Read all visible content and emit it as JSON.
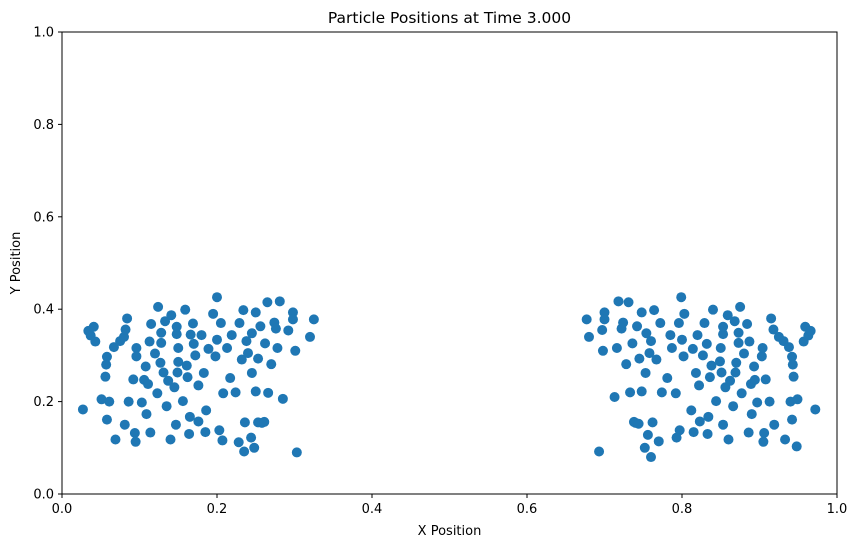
{
  "chart_data": {
    "type": "scatter",
    "title": "Particle Positions at Time 3.000",
    "xlabel": "X Position",
    "ylabel": "Y Position",
    "xlim": [
      0,
      1
    ],
    "ylim": [
      0,
      1
    ],
    "xticks": [
      "0.0",
      "0.2",
      "0.4",
      "0.6",
      "0.8",
      "1.0"
    ],
    "yticks": [
      "0.0",
      "0.2",
      "0.4",
      "0.6",
      "0.8",
      "1.0"
    ],
    "grid": false,
    "marker_color": "#1f77b4",
    "series": [
      {
        "points": [
          [
            0.027,
            0.183
          ],
          [
            0.034,
            0.353
          ],
          [
            0.037,
            0.343
          ],
          [
            0.041,
            0.362
          ],
          [
            0.043,
            0.33
          ],
          [
            0.051,
            0.205
          ],
          [
            0.056,
            0.254
          ],
          [
            0.057,
            0.28
          ],
          [
            0.058,
            0.297
          ],
          [
            0.058,
            0.161
          ],
          [
            0.061,
            0.2
          ],
          [
            0.067,
            0.318
          ],
          [
            0.069,
            0.118
          ],
          [
            0.075,
            0.331
          ],
          [
            0.08,
            0.34
          ],
          [
            0.081,
            0.15
          ],
          [
            0.082,
            0.356
          ],
          [
            0.084,
            0.38
          ],
          [
            0.086,
            0.2
          ],
          [
            0.092,
            0.248
          ],
          [
            0.094,
            0.132
          ],
          [
            0.095,
            0.113
          ],
          [
            0.096,
            0.316
          ],
          [
            0.096,
            0.298
          ],
          [
            0.103,
            0.198
          ],
          [
            0.106,
            0.247
          ],
          [
            0.108,
            0.276
          ],
          [
            0.109,
            0.173
          ],
          [
            0.111,
            0.238
          ],
          [
            0.113,
            0.33
          ],
          [
            0.114,
            0.133
          ],
          [
            0.115,
            0.368
          ],
          [
            0.12,
            0.304
          ],
          [
            0.123,
            0.218
          ],
          [
            0.124,
            0.405
          ],
          [
            0.127,
            0.284
          ],
          [
            0.128,
            0.327
          ],
          [
            0.128,
            0.349
          ],
          [
            0.131,
            0.263
          ],
          [
            0.133,
            0.374
          ],
          [
            0.135,
            0.19
          ],
          [
            0.137,
            0.245
          ],
          [
            0.14,
            0.118
          ],
          [
            0.141,
            0.387
          ],
          [
            0.145,
            0.231
          ],
          [
            0.147,
            0.15
          ],
          [
            0.148,
            0.346
          ],
          [
            0.148,
            0.362
          ],
          [
            0.149,
            0.263
          ],
          [
            0.15,
            0.286
          ],
          [
            0.15,
            0.316
          ],
          [
            0.156,
            0.201
          ],
          [
            0.159,
            0.399
          ],
          [
            0.161,
            0.278
          ],
          [
            0.162,
            0.253
          ],
          [
            0.164,
            0.13
          ],
          [
            0.165,
            0.167
          ],
          [
            0.166,
            0.345
          ],
          [
            0.169,
            0.369
          ],
          [
            0.17,
            0.325
          ],
          [
            0.172,
            0.3
          ],
          [
            0.176,
            0.235
          ],
          [
            0.176,
            0.157
          ],
          [
            0.18,
            0.344
          ],
          [
            0.183,
            0.262
          ],
          [
            0.185,
            0.134
          ],
          [
            0.186,
            0.181
          ],
          [
            0.189,
            0.314
          ],
          [
            0.195,
            0.39
          ],
          [
            0.198,
            0.298
          ],
          [
            0.2,
            0.426
          ],
          [
            0.2,
            0.334
          ],
          [
            0.203,
            0.138
          ],
          [
            0.205,
            0.37
          ],
          [
            0.207,
            0.116
          ],
          [
            0.208,
            0.218
          ],
          [
            0.213,
            0.316
          ],
          [
            0.217,
            0.251
          ],
          [
            0.219,
            0.344
          ],
          [
            0.224,
            0.22
          ],
          [
            0.228,
            0.112
          ],
          [
            0.229,
            0.37
          ],
          [
            0.232,
            0.291
          ],
          [
            0.234,
            0.398
          ],
          [
            0.235,
            0.092
          ],
          [
            0.236,
            0.155
          ],
          [
            0.238,
            0.331
          ],
          [
            0.24,
            0.305
          ],
          [
            0.244,
            0.122
          ],
          [
            0.245,
            0.348
          ],
          [
            0.245,
            0.262
          ],
          [
            0.248,
            0.1
          ],
          [
            0.25,
            0.393
          ],
          [
            0.25,
            0.222
          ],
          [
            0.253,
            0.293
          ],
          [
            0.253,
            0.155
          ],
          [
            0.256,
            0.363
          ],
          [
            0.258,
            0.154
          ],
          [
            0.261,
            0.156
          ],
          [
            0.262,
            0.326
          ],
          [
            0.265,
            0.415
          ],
          [
            0.266,
            0.219
          ],
          [
            0.27,
            0.281
          ],
          [
            0.274,
            0.371
          ],
          [
            0.276,
            0.358
          ],
          [
            0.278,
            0.316
          ],
          [
            0.281,
            0.417
          ],
          [
            0.285,
            0.206
          ],
          [
            0.292,
            0.354
          ],
          [
            0.298,
            0.393
          ],
          [
            0.298,
            0.378
          ],
          [
            0.301,
            0.31
          ],
          [
            0.303,
            0.09
          ],
          [
            0.32,
            0.34
          ],
          [
            0.325,
            0.378
          ]
        ]
      },
      {
        "points": [
          [
            0.677,
            0.378
          ],
          [
            0.68,
            0.34
          ],
          [
            0.693,
            0.092
          ],
          [
            0.697,
            0.355
          ],
          [
            0.698,
            0.31
          ],
          [
            0.7,
            0.393
          ],
          [
            0.7,
            0.378
          ],
          [
            0.713,
            0.21
          ],
          [
            0.716,
            0.316
          ],
          [
            0.718,
            0.417
          ],
          [
            0.722,
            0.358
          ],
          [
            0.724,
            0.371
          ],
          [
            0.728,
            0.281
          ],
          [
            0.731,
            0.415
          ],
          [
            0.733,
            0.22
          ],
          [
            0.736,
            0.326
          ],
          [
            0.738,
            0.156
          ],
          [
            0.74,
            0.154
          ],
          [
            0.742,
            0.363
          ],
          [
            0.744,
            0.152
          ],
          [
            0.745,
            0.293
          ],
          [
            0.748,
            0.222
          ],
          [
            0.748,
            0.393
          ],
          [
            0.752,
            0.1
          ],
          [
            0.753,
            0.262
          ],
          [
            0.754,
            0.348
          ],
          [
            0.756,
            0.128
          ],
          [
            0.758,
            0.305
          ],
          [
            0.76,
            0.331
          ],
          [
            0.76,
            0.08
          ],
          [
            0.762,
            0.155
          ],
          [
            0.764,
            0.398
          ],
          [
            0.767,
            0.291
          ],
          [
            0.77,
            0.114
          ],
          [
            0.772,
            0.37
          ],
          [
            0.774,
            0.22
          ],
          [
            0.781,
            0.251
          ],
          [
            0.785,
            0.344
          ],
          [
            0.787,
            0.316
          ],
          [
            0.792,
            0.218
          ],
          [
            0.793,
            0.122
          ],
          [
            0.796,
            0.37
          ],
          [
            0.797,
            0.138
          ],
          [
            0.799,
            0.426
          ],
          [
            0.8,
            0.334
          ],
          [
            0.802,
            0.298
          ],
          [
            0.803,
            0.39
          ],
          [
            0.812,
            0.181
          ],
          [
            0.814,
            0.314
          ],
          [
            0.815,
            0.134
          ],
          [
            0.818,
            0.262
          ],
          [
            0.82,
            0.344
          ],
          [
            0.822,
            0.235
          ],
          [
            0.823,
            0.157
          ],
          [
            0.827,
            0.3
          ],
          [
            0.829,
            0.37
          ],
          [
            0.832,
            0.325
          ],
          [
            0.833,
            0.13
          ],
          [
            0.834,
            0.167
          ],
          [
            0.836,
            0.253
          ],
          [
            0.838,
            0.278
          ],
          [
            0.84,
            0.399
          ],
          [
            0.844,
            0.201
          ],
          [
            0.849,
            0.287
          ],
          [
            0.85,
            0.316
          ],
          [
            0.851,
            0.263
          ],
          [
            0.853,
            0.15
          ],
          [
            0.853,
            0.346
          ],
          [
            0.853,
            0.362
          ],
          [
            0.856,
            0.231
          ],
          [
            0.859,
            0.387
          ],
          [
            0.86,
            0.118
          ],
          [
            0.862,
            0.245
          ],
          [
            0.866,
            0.19
          ],
          [
            0.868,
            0.374
          ],
          [
            0.869,
            0.263
          ],
          [
            0.87,
            0.284
          ],
          [
            0.873,
            0.327
          ],
          [
            0.873,
            0.349
          ],
          [
            0.875,
            0.405
          ],
          [
            0.877,
            0.218
          ],
          [
            0.88,
            0.304
          ],
          [
            0.884,
            0.368
          ],
          [
            0.886,
            0.133
          ],
          [
            0.887,
            0.33
          ],
          [
            0.889,
            0.238
          ],
          [
            0.89,
            0.173
          ],
          [
            0.893,
            0.276
          ],
          [
            0.894,
            0.247
          ],
          [
            0.897,
            0.198
          ],
          [
            0.903,
            0.298
          ],
          [
            0.904,
            0.316
          ],
          [
            0.905,
            0.113
          ],
          [
            0.906,
            0.132
          ],
          [
            0.908,
            0.248
          ],
          [
            0.913,
            0.2
          ],
          [
            0.915,
            0.38
          ],
          [
            0.918,
            0.356
          ],
          [
            0.919,
            0.15
          ],
          [
            0.925,
            0.34
          ],
          [
            0.931,
            0.331
          ],
          [
            0.933,
            0.118
          ],
          [
            0.938,
            0.318
          ],
          [
            0.94,
            0.2
          ],
          [
            0.942,
            0.161
          ],
          [
            0.942,
            0.297
          ],
          [
            0.943,
            0.28
          ],
          [
            0.944,
            0.254
          ],
          [
            0.949,
            0.205
          ],
          [
            0.957,
            0.33
          ],
          [
            0.959,
            0.362
          ],
          [
            0.963,
            0.343
          ],
          [
            0.966,
            0.353
          ],
          [
            0.972,
            0.183
          ],
          [
            0.948,
            0.103
          ]
        ]
      }
    ]
  }
}
